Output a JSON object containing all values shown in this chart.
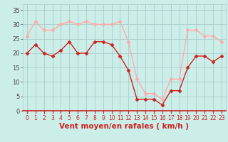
{
  "x": [
    0,
    1,
    2,
    3,
    4,
    5,
    6,
    7,
    8,
    9,
    10,
    11,
    12,
    13,
    14,
    15,
    16,
    17,
    18,
    19,
    20,
    21,
    22,
    23
  ],
  "vent_moyen": [
    20,
    23,
    20,
    19,
    21,
    24,
    20,
    20,
    24,
    24,
    23,
    19,
    14,
    4,
    4,
    4,
    2,
    7,
    7,
    15,
    19,
    19,
    17,
    19
  ],
  "rafales": [
    26,
    31,
    28,
    28,
    30,
    31,
    30,
    31,
    30,
    30,
    30,
    31,
    24,
    11,
    6,
    6,
    4,
    11,
    11,
    28,
    28,
    26,
    26,
    24
  ],
  "moyen_color": "#cc2222",
  "rafales_color": "#ffaaaa",
  "bg_color": "#cceee8",
  "grid_color": "#aacccc",
  "xlabel": "Vent moyen/en rafales ( km/h )",
  "xlabel_color": "#cc2222",
  "ylabel_ticks": [
    0,
    5,
    10,
    15,
    20,
    25,
    30,
    35
  ],
  "ylim": [
    0,
    37
  ],
  "xlim": [
    -0.5,
    23.5
  ],
  "tick_fontsize": 5.5,
  "ylabel_fontsize": 6.0,
  "xlabel_fontsize": 7.5
}
